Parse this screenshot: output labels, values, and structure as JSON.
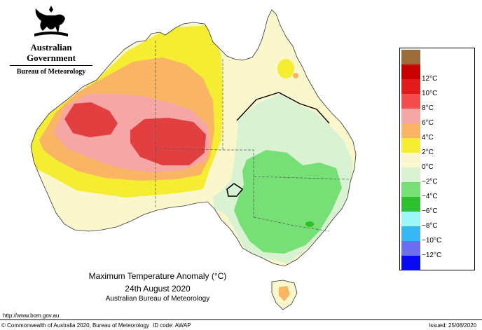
{
  "header": {
    "government": "Australian Government",
    "bureau": "Bureau of Meteorology"
  },
  "titles": {
    "main": "Maximum Temperature Anomaly (°C)",
    "date": "24th August 2020",
    "source": "Australian Bureau of Meteorology"
  },
  "legend": {
    "items": [
      {
        "label": "",
        "color": "#9b6b39"
      },
      {
        "label": "12°C",
        "color": "#c80000"
      },
      {
        "label": "10°C",
        "color": "#e31b1b"
      },
      {
        "label": "8°C",
        "color": "#f24c4c"
      },
      {
        "label": "6°C",
        "color": "#f7a6a6"
      },
      {
        "label": "4°C",
        "color": "#f9b564"
      },
      {
        "label": "2°C",
        "color": "#f5ed31"
      },
      {
        "label": "0°C",
        "color": "#fbf7cd"
      },
      {
        "label": "−2°C",
        "color": "#d9f3d2"
      },
      {
        "label": "−4°C",
        "color": "#76e076"
      },
      {
        "label": "−6°C",
        "color": "#2dc12d"
      },
      {
        "label": "−8°C",
        "color": "#9ef7f7"
      },
      {
        "label": "−10°C",
        "color": "#38b8f2"
      },
      {
        "label": "−12°C",
        "color": "#6e6ef0"
      },
      {
        "label": "",
        "color": "#0a0af2"
      }
    ]
  },
  "footer": {
    "url": "http://www.bom.gov.au",
    "copyright": "© Commonwealth of Australia 2020, Bureau of Meteorology",
    "id_code": "ID code: AWAP",
    "issued": "Issued: 25/08/2020"
  }
}
